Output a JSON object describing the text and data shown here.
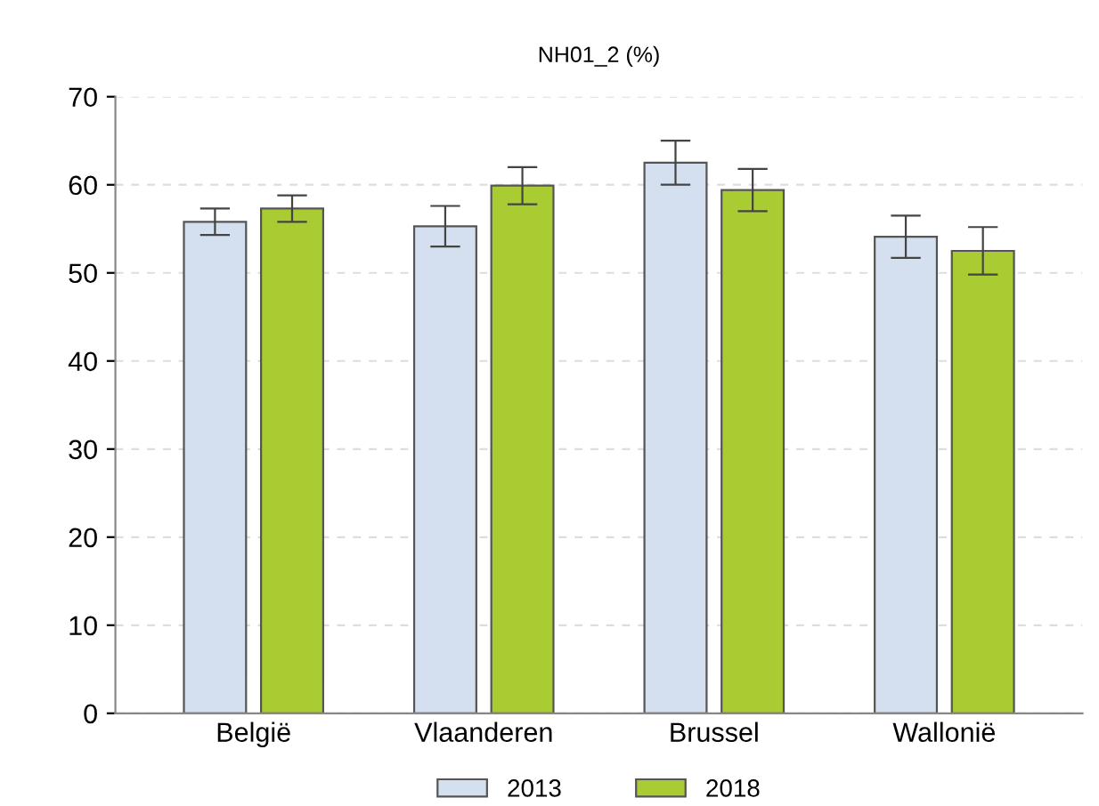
{
  "chart_data": {
    "type": "bar",
    "title": "NH01_2 (%)",
    "categories": [
      "België",
      "Vlaanderen",
      "Brussel",
      "Wallonië"
    ],
    "series": [
      {
        "name": "2013",
        "color": "#d4e0ef",
        "values": [
          55.8,
          55.3,
          62.5,
          54.1
        ],
        "errors": [
          1.5,
          2.3,
          2.5,
          2.4
        ]
      },
      {
        "name": "2018",
        "color": "#aacc33",
        "values": [
          57.3,
          59.9,
          59.4,
          52.5
        ],
        "errors": [
          1.5,
          2.1,
          2.4,
          2.7
        ]
      }
    ],
    "ylim": [
      0,
      70
    ],
    "yticks": [
      0,
      10,
      20,
      30,
      40,
      50,
      60,
      70
    ],
    "grid": "y",
    "legend": "bottom"
  }
}
